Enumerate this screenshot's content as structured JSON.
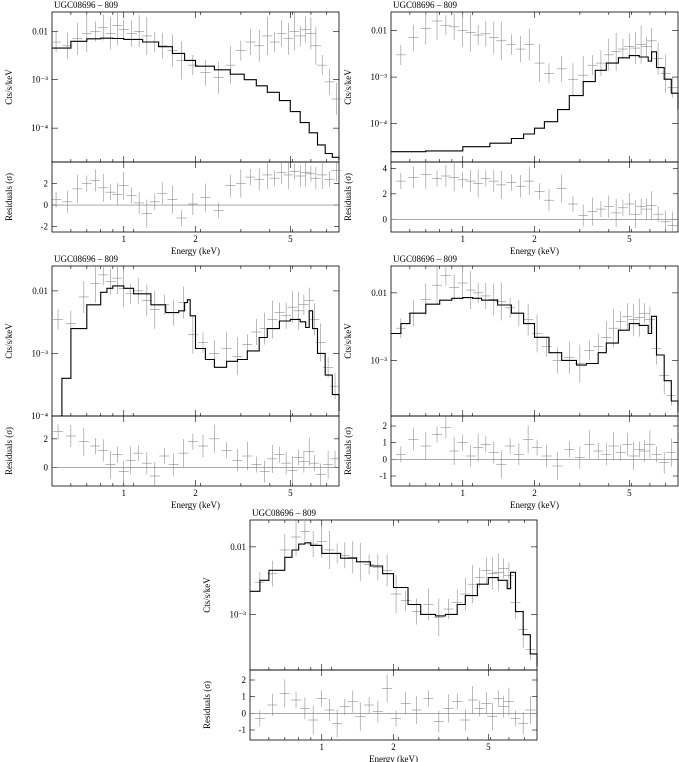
{
  "chart_data": [
    {
      "type": "line",
      "source": "UGC08696 – 809",
      "spectrum_ylabel": "Cts/s/keV",
      "residual_ylabel": "Residuals (σ)",
      "xlabel": "Energy (keV)",
      "x_scale": "log",
      "xlim": [
        0.5,
        8.0
      ],
      "x_ticks": [
        1,
        2,
        5
      ],
      "y_scale": "log",
      "ylim": [
        2e-05,
        0.025
      ],
      "y_ticks": [
        {
          "value": 0.01,
          "label": "0.01"
        },
        {
          "value": 0.001,
          "label": "10⁻³"
        },
        {
          "value": 0.0001,
          "label": "10⁻⁴"
        }
      ],
      "res_ylim": [
        -2.5,
        4.0
      ],
      "res_ticks": [
        -2,
        0,
        2
      ],
      "model": {
        "x": [
          0.5,
          0.6,
          0.7,
          0.8,
          0.9,
          1.0,
          1.2,
          1.4,
          1.6,
          1.8,
          2.0,
          2.4,
          2.8,
          3.2,
          3.6,
          4.0,
          4.5,
          5.0,
          5.5,
          6.0,
          6.5,
          7.0,
          7.5,
          8.0
        ],
        "y": [
          0.0045,
          0.0062,
          0.007,
          0.0072,
          0.0071,
          0.0068,
          0.006,
          0.0048,
          0.0035,
          0.0025,
          0.0019,
          0.0016,
          0.0013,
          0.001,
          0.00075,
          0.00055,
          0.00037,
          0.00022,
          0.00013,
          8e-05,
          4.5e-05,
          3e-05,
          2.5e-05,
          2.2e-05
        ]
      },
      "data": {
        "x": [
          0.52,
          0.58,
          0.64,
          0.7,
          0.76,
          0.82,
          0.88,
          0.94,
          1.0,
          1.08,
          1.16,
          1.25,
          1.35,
          1.45,
          1.6,
          1.75,
          1.95,
          2.2,
          2.5,
          2.8,
          3.1,
          3.4,
          3.7,
          4.0,
          4.3,
          4.6,
          4.9,
          5.2,
          5.5,
          5.8,
          6.1,
          6.4,
          6.8,
          7.3,
          7.8
        ],
        "y": [
          0.006,
          0.005,
          0.007,
          0.009,
          0.01,
          0.012,
          0.009,
          0.013,
          0.011,
          0.009,
          0.01,
          0.008,
          0.006,
          0.005,
          0.004,
          0.0025,
          0.002,
          0.0014,
          0.0011,
          0.002,
          0.004,
          0.006,
          0.005,
          0.008,
          0.006,
          0.009,
          0.007,
          0.01,
          0.008,
          0.011,
          0.009,
          0.005,
          0.002,
          0.0009,
          0.0004
        ],
        "res": [
          0.5,
          0.3,
          1.5,
          2.0,
          2.3,
          1.6,
          1.2,
          1.0,
          1.8,
          0.9,
          0.2,
          -0.8,
          0.3,
          1.1,
          0.5,
          -1.2,
          0.1,
          0.7,
          -0.5,
          1.8,
          2.0,
          2.6,
          2.4,
          2.8,
          2.5,
          3.0,
          2.8,
          3.1,
          2.7,
          3.0,
          2.9,
          2.5,
          2.8,
          2.4,
          3.2
        ]
      }
    },
    {
      "type": "line",
      "source": "UGC08696 – 809",
      "spectrum_ylabel": "Cts/s/keV",
      "residual_ylabel": "Residuals (σ)",
      "xlabel": "Energy (keV)",
      "x_scale": "log",
      "xlim": [
        0.5,
        8.0
      ],
      "x_ticks": [
        1,
        2,
        5
      ],
      "y_scale": "log",
      "ylim": [
        1.5e-05,
        0.025
      ],
      "y_ticks": [
        {
          "value": 0.01,
          "label": "0.01"
        },
        {
          "value": 0.001,
          "label": "10⁻³"
        },
        {
          "value": 0.0001,
          "label": "10⁻⁴"
        }
      ],
      "res_ylim": [
        -1.0,
        4.5
      ],
      "res_ticks": [
        0,
        2,
        4
      ],
      "model": {
        "x": [
          0.5,
          0.7,
          1.0,
          1.3,
          1.6,
          1.8,
          2.0,
          2.2,
          2.5,
          2.8,
          3.2,
          3.6,
          4.0,
          4.5,
          5.0,
          5.5,
          6.0,
          6.2,
          6.5,
          7.0,
          7.5,
          8.0
        ],
        "y": [
          2.5e-05,
          2.6e-05,
          3.2e-05,
          3.8e-05,
          4.8e-05,
          6e-05,
          8e-05,
          0.00011,
          0.0002,
          0.0004,
          0.0008,
          0.0014,
          0.002,
          0.0026,
          0.0029,
          0.0027,
          0.0022,
          0.0035,
          0.0016,
          0.0009,
          0.00045,
          0.0002
        ]
      },
      "data": {
        "x": [
          0.55,
          0.62,
          0.7,
          0.78,
          0.85,
          0.92,
          1.0,
          1.08,
          1.16,
          1.25,
          1.35,
          1.45,
          1.6,
          1.75,
          1.9,
          2.1,
          2.3,
          2.6,
          2.9,
          3.2,
          3.5,
          3.8,
          4.1,
          4.4,
          4.7,
          5.0,
          5.3,
          5.6,
          5.9,
          6.2,
          6.6,
          7.1,
          7.6
        ],
        "y": [
          0.003,
          0.007,
          0.011,
          0.016,
          0.013,
          0.012,
          0.01,
          0.009,
          0.008,
          0.0085,
          0.007,
          0.006,
          0.005,
          0.004,
          0.005,
          0.002,
          0.0012,
          0.0015,
          0.0009,
          0.0011,
          0.0018,
          0.002,
          0.003,
          0.0035,
          0.004,
          0.0045,
          0.0042,
          0.005,
          0.0045,
          0.006,
          0.0025,
          0.0012,
          0.0006
        ],
        "res": [
          3.0,
          3.3,
          3.5,
          3.2,
          3.4,
          3.3,
          3.1,
          3.0,
          2.8,
          3.2,
          3.0,
          2.7,
          2.9,
          2.6,
          3.0,
          2.2,
          1.5,
          2.4,
          1.2,
          0.3,
          0.6,
          0.8,
          1.0,
          0.5,
          0.9,
          1.2,
          0.4,
          1.0,
          0.8,
          1.1,
          0.4,
          -0.2,
          -0.5
        ]
      }
    },
    {
      "type": "line",
      "source": "UGC08696 – 809",
      "spectrum_ylabel": "Cts/s/keV",
      "residual_ylabel": "Residuals (σ)",
      "xlabel": "Energy (keV)",
      "x_scale": "log",
      "xlim": [
        0.5,
        8.0
      ],
      "x_ticks": [
        1,
        2,
        5
      ],
      "y_scale": "log",
      "ylim": [
        0.0001,
        0.025
      ],
      "y_ticks": [
        {
          "value": 0.01,
          "label": "0.01"
        },
        {
          "value": 0.001,
          "label": "10⁻³"
        },
        {
          "value": 0.0001,
          "label": "10⁻⁴"
        }
      ],
      "res_ylim": [
        -1.3,
        3.6
      ],
      "res_ticks": [
        0,
        2
      ],
      "model": {
        "x": [
          0.5,
          0.55,
          0.6,
          0.7,
          0.8,
          0.85,
          0.9,
          1.0,
          1.1,
          1.3,
          1.5,
          1.7,
          1.8,
          1.85,
          1.9,
          2.0,
          2.2,
          2.4,
          2.7,
          3.0,
          3.3,
          3.7,
          4.0,
          4.5,
          5.0,
          5.5,
          5.8,
          6.0,
          6.2,
          6.5,
          7.0,
          7.5,
          8.0
        ],
        "y": [
          0.0001,
          0.0004,
          0.0025,
          0.006,
          0.0095,
          0.011,
          0.012,
          0.011,
          0.009,
          0.006,
          0.0045,
          0.0048,
          0.0065,
          0.0072,
          0.004,
          0.0012,
          0.0008,
          0.0006,
          0.00075,
          0.0008,
          0.0011,
          0.0018,
          0.0025,
          0.0033,
          0.0035,
          0.0032,
          0.0026,
          0.0048,
          0.0025,
          0.001,
          0.00045,
          0.00022,
          0.00012
        ]
      },
      "data": {
        "x": [
          0.53,
          0.6,
          0.68,
          0.76,
          0.82,
          0.88,
          0.94,
          1.0,
          1.07,
          1.15,
          1.25,
          1.35,
          1.48,
          1.62,
          1.78,
          1.95,
          2.15,
          2.4,
          2.7,
          3.0,
          3.3,
          3.6,
          3.9,
          4.2,
          4.5,
          4.8,
          5.1,
          5.4,
          5.7,
          6.0,
          6.3,
          6.7,
          7.2,
          7.7
        ],
        "y": [
          0.0035,
          0.003,
          0.008,
          0.013,
          0.018,
          0.014,
          0.016,
          0.011,
          0.009,
          0.01,
          0.007,
          0.005,
          0.006,
          0.0045,
          0.0065,
          0.002,
          0.0015,
          0.001,
          0.0012,
          0.0009,
          0.0014,
          0.0022,
          0.0025,
          0.0035,
          0.0045,
          0.004,
          0.0055,
          0.0048,
          0.006,
          0.007,
          0.0035,
          0.0015,
          0.0006,
          0.0003
        ],
        "res": [
          2.5,
          2.2,
          1.8,
          1.5,
          1.2,
          0.2,
          0.9,
          -0.3,
          0.5,
          1.0,
          0.3,
          -0.6,
          0.8,
          0.2,
          1.0,
          1.8,
          1.5,
          2.0,
          1.2,
          0.5,
          0.8,
          0.2,
          -0.3,
          0.6,
          0.9,
          0.3,
          -0.2,
          0.7,
          0.4,
          1.1,
          0.3,
          -0.5,
          0.2,
          0.6
        ]
      }
    },
    {
      "type": "line",
      "source": "UGC08696 – 809",
      "spectrum_ylabel": "Cts/s/keV",
      "residual_ylabel": "Residuals (σ)",
      "xlabel": "Energy (keV)",
      "x_scale": "log",
      "xlim": [
        0.5,
        8.0
      ],
      "x_ticks": [
        1,
        2,
        5
      ],
      "y_scale": "log",
      "ylim": [
        0.00015,
        0.025
      ],
      "y_ticks": [
        {
          "value": 0.01,
          "label": "0.01"
        },
        {
          "value": 0.001,
          "label": "10⁻³"
        }
      ],
      "res_ylim": [
        -1.6,
        2.6
      ],
      "res_ticks": [
        -1,
        0,
        1,
        2
      ],
      "model": {
        "x": [
          0.5,
          0.55,
          0.6,
          0.7,
          0.8,
          0.9,
          1.0,
          1.1,
          1.2,
          1.4,
          1.6,
          1.8,
          2.0,
          2.3,
          2.6,
          3.0,
          3.3,
          3.7,
          4.0,
          4.5,
          5.0,
          5.5,
          6.0,
          6.2,
          6.5,
          7.0,
          7.5,
          8.0
        ],
        "y": [
          0.0025,
          0.0035,
          0.005,
          0.0068,
          0.0078,
          0.0083,
          0.0085,
          0.0083,
          0.0078,
          0.0066,
          0.005,
          0.0035,
          0.0022,
          0.0013,
          0.001,
          0.00085,
          0.0009,
          0.0013,
          0.0018,
          0.0028,
          0.0035,
          0.0033,
          0.0025,
          0.0045,
          0.0012,
          0.0005,
          0.00025,
          0.00017
        ]
      },
      "data": {
        "x": [
          0.55,
          0.62,
          0.7,
          0.78,
          0.85,
          0.92,
          1.0,
          1.08,
          1.16,
          1.25,
          1.35,
          1.45,
          1.58,
          1.72,
          1.88,
          2.05,
          2.25,
          2.5,
          2.8,
          3.1,
          3.4,
          3.7,
          4.0,
          4.3,
          4.6,
          4.9,
          5.2,
          5.5,
          5.8,
          6.1,
          6.5,
          7.0,
          7.5
        ],
        "y": [
          0.003,
          0.005,
          0.008,
          0.013,
          0.018,
          0.012,
          0.014,
          0.011,
          0.01,
          0.009,
          0.008,
          0.0075,
          0.006,
          0.005,
          0.004,
          0.0025,
          0.0016,
          0.001,
          0.0011,
          0.0009,
          0.0014,
          0.0016,
          0.0022,
          0.003,
          0.0038,
          0.0045,
          0.004,
          0.0043,
          0.005,
          0.004,
          0.0015,
          0.0006,
          0.0003
        ],
        "res": [
          0.3,
          1.2,
          0.8,
          1.5,
          1.9,
          0.5,
          1.0,
          0.2,
          0.7,
          0.9,
          0.4,
          -0.3,
          0.8,
          0.3,
          1.2,
          0.7,
          0.2,
          -0.4,
          0.6,
          0.1,
          0.9,
          0.5,
          0.3,
          0.8,
          0.4,
          0.9,
          0.2,
          0.6,
          0.5,
          0.9,
          0.3,
          -0.2,
          0.4
        ]
      }
    },
    {
      "type": "line",
      "source": "UGC08696 – 809",
      "spectrum_ylabel": "Cts/s/keV",
      "residual_ylabel": "Residuals (σ)",
      "xlabel": "Energy (keV)",
      "x_scale": "log",
      "xlim": [
        0.5,
        8.0
      ],
      "x_ticks": [
        1,
        2,
        5
      ],
      "y_scale": "log",
      "ylim": [
        0.00015,
        0.025
      ],
      "y_ticks": [
        {
          "value": 0.01,
          "label": "0.01"
        },
        {
          "value": 0.001,
          "label": "10⁻³"
        }
      ],
      "res_ylim": [
        -1.6,
        2.6
      ],
      "res_ticks": [
        -1,
        0,
        1,
        2
      ],
      "model": {
        "x": [
          0.5,
          0.55,
          0.6,
          0.7,
          0.75,
          0.8,
          0.85,
          0.9,
          1.0,
          1.2,
          1.4,
          1.6,
          1.8,
          2.0,
          2.3,
          2.6,
          3.0,
          3.3,
          3.7,
          4.0,
          4.5,
          5.0,
          5.5,
          6.0,
          6.2,
          6.5,
          7.0,
          7.5,
          8.0
        ],
        "y": [
          0.0022,
          0.0032,
          0.0045,
          0.007,
          0.009,
          0.011,
          0.0115,
          0.0105,
          0.008,
          0.0068,
          0.006,
          0.0052,
          0.004,
          0.0025,
          0.0014,
          0.001,
          0.00095,
          0.001,
          0.0014,
          0.0019,
          0.0028,
          0.0035,
          0.0032,
          0.0024,
          0.0042,
          0.0011,
          0.0005,
          0.00026,
          0.00017
        ]
      },
      "data": {
        "x": [
          0.55,
          0.62,
          0.7,
          0.78,
          0.85,
          0.92,
          1.0,
          1.08,
          1.16,
          1.25,
          1.35,
          1.45,
          1.58,
          1.72,
          1.88,
          2.05,
          2.25,
          2.5,
          2.8,
          3.1,
          3.4,
          3.7,
          4.0,
          4.3,
          4.6,
          4.9,
          5.2,
          5.5,
          5.8,
          6.1,
          6.5,
          7.0,
          7.5
        ],
        "y": [
          0.003,
          0.004,
          0.009,
          0.014,
          0.017,
          0.011,
          0.012,
          0.009,
          0.008,
          0.0075,
          0.007,
          0.006,
          0.0055,
          0.005,
          0.0045,
          0.002,
          0.0016,
          0.0011,
          0.0014,
          0.0009,
          0.0012,
          0.0015,
          0.002,
          0.0028,
          0.0035,
          0.0045,
          0.004,
          0.0042,
          0.0048,
          0.0038,
          0.0015,
          0.0006,
          0.0003
        ],
        "res": [
          -0.3,
          0.5,
          1.2,
          0.8,
          0.3,
          -0.4,
          0.9,
          0.2,
          -0.6,
          0.4,
          0.7,
          -0.2,
          0.5,
          0.1,
          1.5,
          -0.3,
          0.6,
          0.2,
          0.9,
          -0.5,
          0.3,
          0.7,
          -0.4,
          0.8,
          0.3,
          0.6,
          -0.2,
          0.9,
          0.4,
          0.7,
          -0.3,
          -0.6,
          0.2
        ]
      }
    }
  ]
}
